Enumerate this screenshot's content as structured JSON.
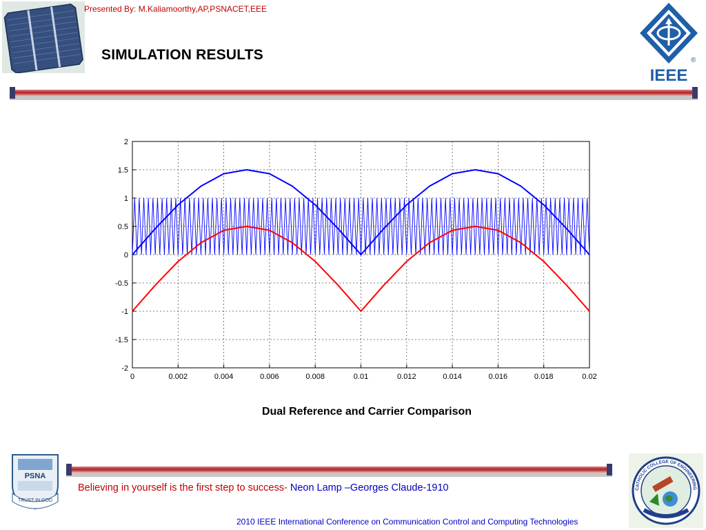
{
  "header": {
    "presenter": "Presented By: M.Kaliamoorthy,AP,PSNACET,EEE",
    "title": "SIMULATION RESULTS",
    "ieee_logo_text": "IEEE",
    "registered_mark": "®"
  },
  "figure": {
    "caption": "Dual Reference and Carrier Comparison"
  },
  "chart_data": {
    "type": "line",
    "title": "",
    "xlabel": "",
    "ylabel": "",
    "xlim": [
      0,
      0.02
    ],
    "ylim": [
      -2,
      2
    ],
    "grid": true,
    "x_ticks": [
      "0",
      "0.002",
      "0.004",
      "0.006",
      "0.008",
      "0.01",
      "0.012",
      "0.014",
      "0.016",
      "0.018",
      "0.02"
    ],
    "y_ticks": [
      "2",
      "1.5",
      "1",
      "0.5",
      "0",
      "-0.5",
      "-1",
      "-1.5",
      "-2"
    ],
    "series": [
      {
        "color": "#0000ff",
        "x": [
          0,
          0.001,
          0.002,
          0.003,
          0.004,
          0.005,
          0.006,
          0.007,
          0.008,
          0.009,
          0.01,
          0.011,
          0.012,
          0.013,
          0.014,
          0.015,
          0.016,
          0.017,
          0.018,
          0.019,
          0.02
        ],
        "values": [
          0,
          0.46,
          0.88,
          1.21,
          1.43,
          1.5,
          1.43,
          1.21,
          0.88,
          0.46,
          0,
          0.46,
          0.88,
          1.21,
          1.43,
          1.5,
          1.43,
          1.21,
          0.88,
          0.46,
          0
        ]
      },
      {
        "color": "#ff0000",
        "x": [
          0,
          0.001,
          0.002,
          0.003,
          0.004,
          0.005,
          0.006,
          0.007,
          0.008,
          0.009,
          0.01,
          0.011,
          0.012,
          0.013,
          0.014,
          0.015,
          0.016,
          0.017,
          0.018,
          0.019,
          0.02
        ],
        "values": [
          -1,
          -0.54,
          -0.12,
          0.21,
          0.43,
          0.5,
          0.43,
          0.21,
          -0.12,
          -0.54,
          -1,
          -0.54,
          -0.12,
          0.21,
          0.43,
          0.5,
          0.43,
          0.21,
          -0.12,
          -0.54,
          -1
        ]
      },
      {
        "color": "#0000ff",
        "kind": "triangular-carrier",
        "min": 0,
        "max": 1,
        "frequency_hz": 5000
      }
    ]
  },
  "footer": {
    "quote": "Believing in yourself is the first step to success-",
    "quote_credit": " Neon Lamp –Georges Claude-1910",
    "conference": "2010 IEEE International Conference on Communication Control and Computing Technologies",
    "psna_logo_text": "PSNA",
    "psna_motto": "TRUST IN GOD",
    "college_logo_text": "CATHOLIC COLLEGE OF ENGINEERING"
  }
}
